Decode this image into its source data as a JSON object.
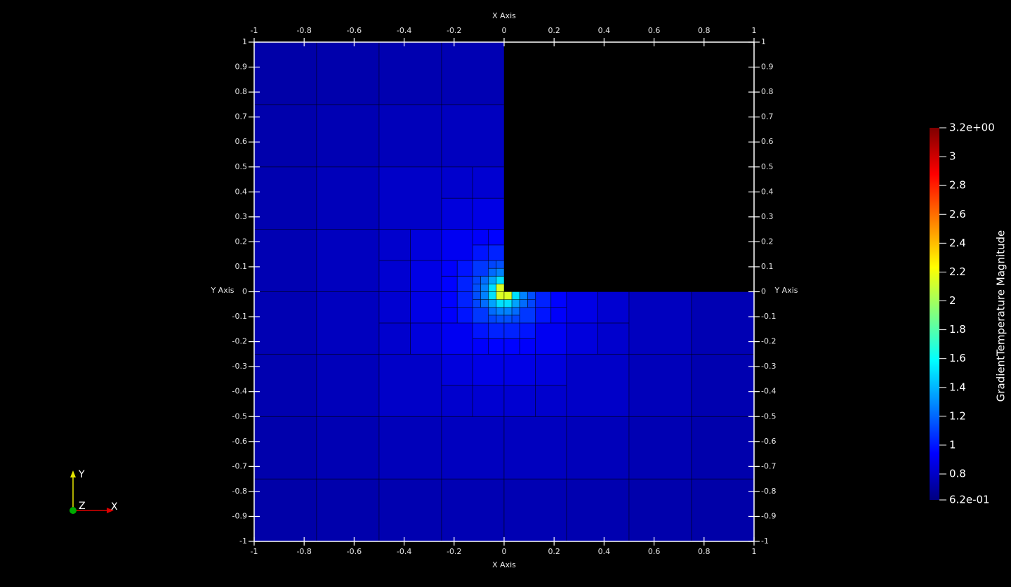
{
  "chart_data": {
    "type": "mesh",
    "x_axis_title": "X Axis",
    "y_axis_title": "Y Axis",
    "xlim": [
      -1,
      1
    ],
    "ylim": [
      -1,
      1
    ],
    "xticks": [
      -1,
      -0.8,
      -0.6,
      -0.4,
      -0.2,
      0,
      0.2,
      0.4,
      0.6,
      0.8,
      1
    ],
    "yticks": [
      1,
      0.9,
      0.8,
      0.7,
      0.6,
      0.5,
      0.4,
      0.3,
      0.2,
      0.1,
      0,
      -0.1,
      -0.2,
      -0.3,
      -0.4,
      -0.5,
      -0.6,
      -0.7,
      -0.8,
      -0.9,
      -1
    ],
    "colorbar": {
      "title": "GradientTemperature Magnitude",
      "lim": [
        0.62,
        3.2
      ],
      "ticks": [
        {
          "value": 3.2,
          "label": "3.2e+00"
        },
        3,
        2.8,
        2.6,
        2.4,
        2.2,
        2,
        1.8,
        1.6,
        1.4,
        1.2,
        1,
        0.8,
        {
          "value": 0.62,
          "label": "6.2e-01"
        }
      ],
      "colormap": [
        "#00007f",
        "#0000ff",
        "#0080ff",
        "#00ffff",
        "#80ff80",
        "#ffff00",
        "#ff8000",
        "#ff0000",
        "#7f0000"
      ]
    },
    "orientation_axes": {
      "x": "X",
      "y": "Y",
      "z": "Z"
    }
  }
}
